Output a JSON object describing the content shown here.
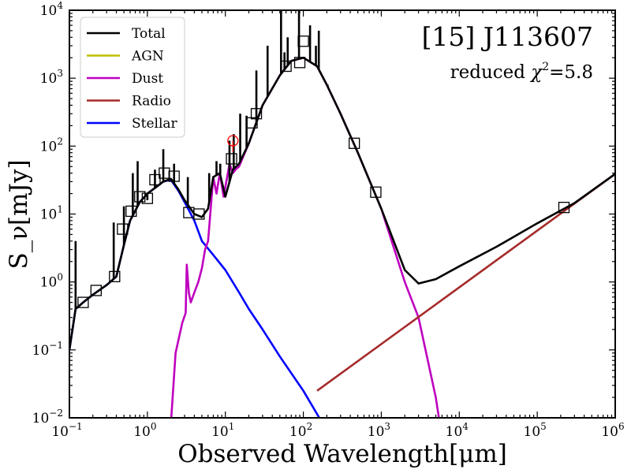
{
  "chart_data": {
    "type": "line",
    "title": "[15] J113607",
    "annotation_prefix": "reduced ",
    "annotation_chi": "χ",
    "annotation_sup": "2",
    "annotation_value": "=5.8",
    "xlabel": "Observed Wavelength[μm]",
    "ylabel": "S_ν[mJy]",
    "xscale": "log",
    "yscale": "log",
    "xlim": [
      0.1,
      1000000
    ],
    "ylim": [
      0.01,
      10000
    ],
    "x_ticks": [
      {
        "base": "10",
        "exp": "−1"
      },
      {
        "base": "10",
        "exp": "0"
      },
      {
        "base": "10",
        "exp": "1"
      },
      {
        "base": "10",
        "exp": "2"
      },
      {
        "base": "10",
        "exp": "3"
      },
      {
        "base": "10",
        "exp": "4"
      },
      {
        "base": "10",
        "exp": "5"
      },
      {
        "base": "10",
        "exp": "6"
      }
    ],
    "y_ticks": [
      {
        "base": "10",
        "exp": "−2"
      },
      {
        "base": "10",
        "exp": "−1"
      },
      {
        "base": "10",
        "exp": "0"
      },
      {
        "base": "10",
        "exp": "1"
      },
      {
        "base": "10",
        "exp": "2"
      },
      {
        "base": "10",
        "exp": "3"
      },
      {
        "base": "10",
        "exp": "4"
      }
    ],
    "legend_position": "top-left",
    "legend": [
      {
        "label": "Total",
        "color": "#000000"
      },
      {
        "label": "AGN",
        "color": "#bfbf00"
      },
      {
        "label": "Dust",
        "color": "#bf00bf"
      },
      {
        "label": "Radio",
        "color": "#a52a2a"
      },
      {
        "label": "Stellar",
        "color": "#0000ff"
      }
    ],
    "series": [
      {
        "name": "Stellar",
        "color": "#0000ff",
        "x": [
          0.1,
          0.12,
          0.15,
          0.2,
          0.3,
          0.4,
          0.5,
          0.6,
          0.8,
          1.0,
          1.3,
          1.6,
          2.0,
          2.5,
          3.0,
          4.0,
          5.0,
          7.0,
          10,
          15,
          20,
          30,
          50,
          100,
          160
        ],
        "y": [
          0.1,
          0.4,
          0.5,
          0.65,
          0.9,
          1.2,
          3.5,
          8,
          15,
          20,
          25,
          30,
          32,
          22,
          15,
          8,
          4,
          2.5,
          1.5,
          0.7,
          0.4,
          0.2,
          0.08,
          0.025,
          0.01
        ]
      },
      {
        "name": "Dust",
        "color": "#bf00bf",
        "x": [
          2.0,
          2.3,
          2.8,
          3.1,
          3.2,
          3.4,
          3.6,
          4.0,
          4.5,
          5.0,
          5.5,
          6.0,
          7.0,
          7.7,
          8.5,
          9.5,
          11.3,
          12.5,
          13.5,
          15,
          20,
          30,
          50,
          70,
          100,
          150,
          200,
          300,
          500,
          1000,
          2000,
          3000,
          5000,
          6000
        ],
        "y": [
          0.008,
          0.09,
          0.25,
          0.35,
          1.8,
          0.7,
          0.5,
          0.7,
          1.0,
          1.6,
          3.0,
          4.0,
          35,
          20,
          40,
          18,
          55,
          40,
          45,
          50,
          110,
          400,
          1100,
          1800,
          2000,
          1500,
          800,
          300,
          80,
          12,
          1.0,
          0.3,
          0.02,
          0.005
        ]
      },
      {
        "name": "Radio",
        "color": "#a52a2a",
        "x": [
          150,
          1000000
        ],
        "y": [
          0.025,
          39
        ]
      },
      {
        "name": "Total",
        "color": "#000000",
        "x": [
          0.1,
          0.12,
          0.15,
          0.2,
          0.3,
          0.4,
          0.5,
          0.6,
          0.8,
          1.0,
          1.3,
          1.6,
          2.0,
          2.5,
          3.0,
          4.0,
          5.0,
          6.0,
          7.0,
          8.5,
          10,
          12.5,
          15,
          20,
          30,
          50,
          70,
          100,
          150,
          200,
          300,
          500,
          1000,
          2000,
          3000,
          5000,
          10000,
          30000,
          100000,
          300000,
          1000000
        ],
        "y": [
          0.1,
          0.4,
          0.5,
          0.65,
          0.9,
          1.2,
          3.5,
          8,
          15,
          20,
          25,
          30,
          33,
          23,
          16,
          10,
          9,
          12,
          35,
          40,
          18,
          45,
          55,
          110,
          400,
          1100,
          1800,
          2000,
          1500,
          800,
          300,
          80,
          12,
          1.5,
          0.95,
          1.1,
          1.7,
          3.3,
          7.3,
          14.5,
          39
        ]
      }
    ],
    "emission_lines": {
      "color": "#000000",
      "x": [
        0.12,
        0.37,
        0.5,
        0.65,
        0.75,
        1.0,
        1.25,
        1.6,
        2.2,
        3.3,
        6.2,
        7.7,
        8.6,
        11.3,
        12.8,
        15.5,
        18.7,
        25,
        34.8,
        51.8,
        57.3,
        63,
        88,
        122,
        145,
        158,
        205
      ],
      "y": [
        4.0,
        7.5,
        13,
        40,
        60,
        16,
        45,
        90,
        55,
        35,
        40,
        60,
        55,
        120,
        150,
        300,
        280,
        1300,
        3000,
        10000,
        2400,
        4000,
        10000,
        6000,
        3000,
        5000,
        800
      ]
    },
    "photometry": {
      "marker": "open-square",
      "x": [
        0.15,
        0.22,
        0.38,
        0.48,
        0.62,
        0.8,
        1.0,
        1.25,
        1.65,
        2.2,
        3.4,
        4.6,
        12,
        22,
        25,
        60,
        90,
        100,
        450,
        850,
        220000
      ],
      "y": [
        0.5,
        0.75,
        1.2,
        6.0,
        11,
        18,
        17,
        32,
        40,
        36,
        10.5,
        10,
        65,
        220,
        300,
        1500,
        1700,
        3500,
        110,
        21,
        12.5
      ]
    },
    "upper_limits": {
      "marker": "open-circle",
      "color": "#ff0000",
      "x": [
        12.5
      ],
      "y": [
        120
      ]
    }
  }
}
